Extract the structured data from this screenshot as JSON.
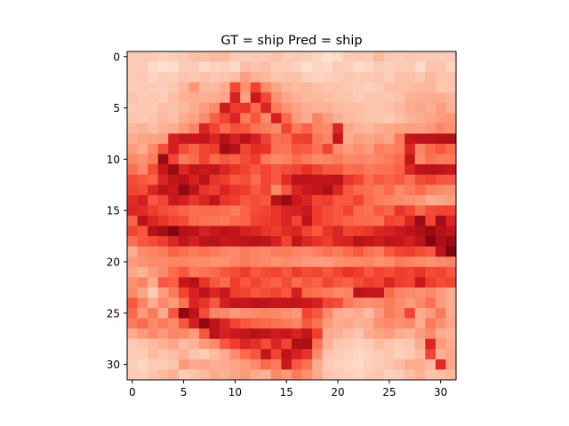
{
  "chart_data": {
    "type": "heatmap",
    "title": "GT = ship Pred = ship",
    "xlabel": "",
    "ylabel": "",
    "xlim": [
      -0.5,
      31.5
    ],
    "ylim": [
      31.5,
      -0.5
    ],
    "x_ticks": [
      0,
      5,
      10,
      15,
      20,
      25,
      30
    ],
    "y_ticks": [
      0,
      5,
      10,
      15,
      20,
      25,
      30
    ],
    "colormap": "Reds",
    "color_range": [
      0,
      1
    ],
    "grid_size": [
      32,
      32
    ],
    "values": [
      [
        0.2,
        0.2,
        0.2,
        0.17,
        0.19,
        0.2,
        0.24,
        0.23,
        0.26,
        0.26,
        0.2,
        0.2,
        0.2,
        0.2,
        0.23,
        0.19,
        0.2,
        0.19,
        0.16,
        0.12,
        0.15,
        0.2,
        0.21,
        0.2,
        0.26,
        0.21,
        0.19,
        0.21,
        0.2,
        0.2,
        0.2,
        0.2
      ],
      [
        0.2,
        0.2,
        0.15,
        0.13,
        0.14,
        0.2,
        0.2,
        0.15,
        0.17,
        0.18,
        0.15,
        0.24,
        0.22,
        0.24,
        0.2,
        0.2,
        0.17,
        0.13,
        0.16,
        0.15,
        0.2,
        0.18,
        0.14,
        0.16,
        0.2,
        0.18,
        0.2,
        0.2,
        0.14,
        0.22,
        0.22,
        0.17
      ],
      [
        0.2,
        0.21,
        0.17,
        0.2,
        0.19,
        0.22,
        0.21,
        0.23,
        0.21,
        0.22,
        0.24,
        0.34,
        0.28,
        0.26,
        0.22,
        0.23,
        0.23,
        0.18,
        0.17,
        0.18,
        0.2,
        0.22,
        0.2,
        0.21,
        0.22,
        0.18,
        0.23,
        0.23,
        0.21,
        0.26,
        0.22,
        0.22
      ],
      [
        0.19,
        0.2,
        0.2,
        0.19,
        0.21,
        0.26,
        0.36,
        0.26,
        0.25,
        0.3,
        0.59,
        0.38,
        0.61,
        0.4,
        0.32,
        0.27,
        0.25,
        0.26,
        0.24,
        0.22,
        0.22,
        0.21,
        0.2,
        0.18,
        0.2,
        0.24,
        0.24,
        0.24,
        0.26,
        0.26,
        0.21,
        0.22
      ],
      [
        0.22,
        0.2,
        0.21,
        0.19,
        0.24,
        0.28,
        0.3,
        0.29,
        0.3,
        0.32,
        0.72,
        0.33,
        0.75,
        0.59,
        0.38,
        0.32,
        0.28,
        0.26,
        0.26,
        0.24,
        0.23,
        0.22,
        0.2,
        0.22,
        0.22,
        0.21,
        0.23,
        0.28,
        0.29,
        0.3,
        0.3,
        0.27
      ],
      [
        0.2,
        0.21,
        0.2,
        0.24,
        0.23,
        0.26,
        0.3,
        0.35,
        0.4,
        0.74,
        0.63,
        0.65,
        0.5,
        0.7,
        0.45,
        0.37,
        0.33,
        0.29,
        0.27,
        0.28,
        0.25,
        0.24,
        0.24,
        0.22,
        0.22,
        0.23,
        0.26,
        0.3,
        0.31,
        0.29,
        0.34,
        0.28
      ],
      [
        0.22,
        0.21,
        0.22,
        0.26,
        0.23,
        0.3,
        0.33,
        0.4,
        0.53,
        0.6,
        0.7,
        0.45,
        0.55,
        0.4,
        0.72,
        0.5,
        0.35,
        0.3,
        0.42,
        0.34,
        0.29,
        0.26,
        0.24,
        0.22,
        0.22,
        0.2,
        0.24,
        0.27,
        0.3,
        0.32,
        0.35,
        0.36
      ],
      [
        0.26,
        0.28,
        0.24,
        0.28,
        0.3,
        0.35,
        0.42,
        0.7,
        0.6,
        0.5,
        0.57,
        0.55,
        0.47,
        0.44,
        0.4,
        0.6,
        0.45,
        0.52,
        0.42,
        0.4,
        0.7,
        0.31,
        0.28,
        0.26,
        0.29,
        0.31,
        0.33,
        0.34,
        0.33,
        0.36,
        0.41,
        0.38
      ],
      [
        0.3,
        0.32,
        0.33,
        0.34,
        0.72,
        0.77,
        0.76,
        0.78,
        0.7,
        0.82,
        0.72,
        0.8,
        0.72,
        0.6,
        0.48,
        0.5,
        0.61,
        0.62,
        0.46,
        0.42,
        0.78,
        0.3,
        0.34,
        0.32,
        0.34,
        0.32,
        0.45,
        0.76,
        0.8,
        0.8,
        0.82,
        0.84
      ],
      [
        0.35,
        0.3,
        0.4,
        0.58,
        0.72,
        0.58,
        0.52,
        0.6,
        0.62,
        0.88,
        0.82,
        0.6,
        0.67,
        0.65,
        0.48,
        0.47,
        0.55,
        0.54,
        0.48,
        0.6,
        0.4,
        0.35,
        0.38,
        0.35,
        0.44,
        0.42,
        0.45,
        0.7,
        0.42,
        0.5,
        0.55,
        0.5
      ],
      [
        0.4,
        0.38,
        0.45,
        0.9,
        0.6,
        0.45,
        0.5,
        0.6,
        0.5,
        0.55,
        0.52,
        0.58,
        0.62,
        0.45,
        0.4,
        0.43,
        0.5,
        0.45,
        0.4,
        0.42,
        0.45,
        0.4,
        0.42,
        0.4,
        0.42,
        0.45,
        0.5,
        0.78,
        0.4,
        0.48,
        0.45,
        0.45
      ],
      [
        0.48,
        0.4,
        0.58,
        0.76,
        0.9,
        0.7,
        0.78,
        0.75,
        0.78,
        0.7,
        0.65,
        0.6,
        0.55,
        0.6,
        0.55,
        0.58,
        0.6,
        0.66,
        0.6,
        0.55,
        0.55,
        0.48,
        0.5,
        0.45,
        0.47,
        0.48,
        0.52,
        0.7,
        0.8,
        0.82,
        0.8,
        0.76
      ],
      [
        0.58,
        0.55,
        0.52,
        0.7,
        0.78,
        0.82,
        0.72,
        0.8,
        0.65,
        0.62,
        0.55,
        0.58,
        0.5,
        0.6,
        0.55,
        0.68,
        0.8,
        0.8,
        0.78,
        0.78,
        0.8,
        0.65,
        0.6,
        0.5,
        0.55,
        0.52,
        0.55,
        0.48,
        0.58,
        0.6,
        0.56,
        0.55
      ],
      [
        0.6,
        0.58,
        0.7,
        0.8,
        0.75,
        0.92,
        0.8,
        0.65,
        0.62,
        0.7,
        0.65,
        0.62,
        0.55,
        0.6,
        0.4,
        0.55,
        0.7,
        0.75,
        0.78,
        0.85,
        0.7,
        0.55,
        0.5,
        0.48,
        0.45,
        0.5,
        0.4,
        0.45,
        0.5,
        0.42,
        0.4,
        0.38
      ],
      [
        0.68,
        0.72,
        0.55,
        0.6,
        0.75,
        0.72,
        0.65,
        0.7,
        0.78,
        0.65,
        0.62,
        0.55,
        0.58,
        0.55,
        0.82,
        0.9,
        0.75,
        0.7,
        0.6,
        0.62,
        0.55,
        0.55,
        0.6,
        0.5,
        0.45,
        0.42,
        0.4,
        0.38,
        0.36,
        0.3,
        0.32,
        0.34
      ],
      [
        0.7,
        0.68,
        0.62,
        0.58,
        0.55,
        0.52,
        0.48,
        0.5,
        0.5,
        0.48,
        0.45,
        0.52,
        0.58,
        0.6,
        0.65,
        0.7,
        0.72,
        0.75,
        0.62,
        0.58,
        0.55,
        0.6,
        0.5,
        0.48,
        0.55,
        0.52,
        0.65,
        0.6,
        0.5,
        0.58,
        0.6,
        0.6
      ],
      [
        0.52,
        0.8,
        0.7,
        0.65,
        0.6,
        0.58,
        0.5,
        0.48,
        0.47,
        0.45,
        0.5,
        0.52,
        0.6,
        0.62,
        0.65,
        0.7,
        0.6,
        0.8,
        0.62,
        0.58,
        0.55,
        0.52,
        0.5,
        0.5,
        0.48,
        0.6,
        0.58,
        0.7,
        0.9,
        0.6,
        0.88,
        0.7
      ],
      [
        0.6,
        0.55,
        0.82,
        0.88,
        0.95,
        0.82,
        0.8,
        0.72,
        0.75,
        0.8,
        0.78,
        0.72,
        0.7,
        0.65,
        0.62,
        0.68,
        0.7,
        0.6,
        0.55,
        0.65,
        0.7,
        0.6,
        0.62,
        0.65,
        0.7,
        0.72,
        0.75,
        0.8,
        0.85,
        0.9,
        0.82,
        0.78
      ],
      [
        0.48,
        0.55,
        0.58,
        0.62,
        0.7,
        0.78,
        0.72,
        0.8,
        0.82,
        0.76,
        0.78,
        0.8,
        0.82,
        0.8,
        0.72,
        0.6,
        0.78,
        0.7,
        0.66,
        0.62,
        0.7,
        0.72,
        0.82,
        0.78,
        0.74,
        0.8,
        0.78,
        0.72,
        0.8,
        0.95,
        0.85,
        0.9
      ],
      [
        0.3,
        0.4,
        0.42,
        0.45,
        0.52,
        0.48,
        0.45,
        0.48,
        0.45,
        0.42,
        0.4,
        0.45,
        0.42,
        0.4,
        0.44,
        0.45,
        0.42,
        0.4,
        0.44,
        0.48,
        0.45,
        0.5,
        0.55,
        0.48,
        0.45,
        0.55,
        0.6,
        0.62,
        0.58,
        0.55,
        0.8,
        0.96
      ],
      [
        0.35,
        0.38,
        0.4,
        0.4,
        0.42,
        0.42,
        0.4,
        0.4,
        0.38,
        0.38,
        0.42,
        0.45,
        0.42,
        0.4,
        0.38,
        0.4,
        0.38,
        0.36,
        0.34,
        0.35,
        0.38,
        0.4,
        0.4,
        0.42,
        0.38,
        0.4,
        0.45,
        0.42,
        0.4,
        0.38,
        0.4,
        0.42
      ],
      [
        0.32,
        0.28,
        0.35,
        0.4,
        0.5,
        0.55,
        0.45,
        0.48,
        0.5,
        0.55,
        0.58,
        0.62,
        0.55,
        0.58,
        0.6,
        0.55,
        0.62,
        0.58,
        0.6,
        0.55,
        0.6,
        0.65,
        0.62,
        0.55,
        0.6,
        0.58,
        0.62,
        0.6,
        0.65,
        0.58,
        0.6,
        0.55
      ],
      [
        0.38,
        0.42,
        0.3,
        0.55,
        0.52,
        0.76,
        0.82,
        0.65,
        0.55,
        0.5,
        0.62,
        0.55,
        0.6,
        0.55,
        0.52,
        0.58,
        0.5,
        0.55,
        0.52,
        0.6,
        0.55,
        0.52,
        0.58,
        0.62,
        0.6,
        0.7,
        0.62,
        0.6,
        0.75,
        0.62,
        0.58,
        0.6
      ],
      [
        0.4,
        0.32,
        0.2,
        0.35,
        0.45,
        0.6,
        0.72,
        0.8,
        0.7,
        0.75,
        0.62,
        0.6,
        0.55,
        0.58,
        0.6,
        0.55,
        0.72,
        0.5,
        0.48,
        0.45,
        0.4,
        0.42,
        0.8,
        0.78,
        0.76,
        0.5,
        0.42,
        0.4,
        0.38,
        0.4,
        0.35,
        0.3
      ],
      [
        0.55,
        0.42,
        0.3,
        0.4,
        0.35,
        0.48,
        0.7,
        0.65,
        0.55,
        0.72,
        0.78,
        0.76,
        0.8,
        0.8,
        0.76,
        0.78,
        0.78,
        0.75,
        0.72,
        0.6,
        0.58,
        0.45,
        0.4,
        0.38,
        0.4,
        0.45,
        0.4,
        0.35,
        0.4,
        0.48,
        0.35,
        0.3
      ],
      [
        0.5,
        0.35,
        0.45,
        0.3,
        0.55,
        0.92,
        0.8,
        0.58,
        0.42,
        0.4,
        0.35,
        0.38,
        0.4,
        0.42,
        0.4,
        0.38,
        0.36,
        0.6,
        0.55,
        0.4,
        0.3,
        0.28,
        0.3,
        0.25,
        0.35,
        0.45,
        0.4,
        0.6,
        0.3,
        0.35,
        0.45,
        0.3
      ],
      [
        0.45,
        0.5,
        0.4,
        0.45,
        0.4,
        0.55,
        0.72,
        0.92,
        0.8,
        0.7,
        0.6,
        0.55,
        0.52,
        0.5,
        0.48,
        0.45,
        0.42,
        0.55,
        0.48,
        0.35,
        0.3,
        0.32,
        0.28,
        0.3,
        0.38,
        0.4,
        0.38,
        0.4,
        0.3,
        0.45,
        0.38,
        0.32
      ],
      [
        0.3,
        0.35,
        0.4,
        0.35,
        0.42,
        0.4,
        0.35,
        0.55,
        0.8,
        0.72,
        0.75,
        0.78,
        0.82,
        0.78,
        0.74,
        0.76,
        0.72,
        0.78,
        0.62,
        0.3,
        0.28,
        0.25,
        0.22,
        0.3,
        0.32,
        0.35,
        0.3,
        0.28,
        0.35,
        0.4,
        0.3,
        0.28
      ],
      [
        0.2,
        0.22,
        0.25,
        0.28,
        0.32,
        0.25,
        0.28,
        0.35,
        0.4,
        0.55,
        0.62,
        0.7,
        0.66,
        0.58,
        0.7,
        0.6,
        0.85,
        0.86,
        0.48,
        0.28,
        0.22,
        0.2,
        0.18,
        0.2,
        0.25,
        0.22,
        0.2,
        0.22,
        0.3,
        0.7,
        0.35,
        0.3
      ],
      [
        0.2,
        0.2,
        0.25,
        0.22,
        0.25,
        0.28,
        0.22,
        0.2,
        0.25,
        0.3,
        0.4,
        0.5,
        0.55,
        0.78,
        0.6,
        0.8,
        0.72,
        0.65,
        0.4,
        0.22,
        0.2,
        0.18,
        0.16,
        0.18,
        0.2,
        0.22,
        0.18,
        0.2,
        0.25,
        0.6,
        0.28,
        0.32
      ],
      [
        0.18,
        0.16,
        0.2,
        0.2,
        0.22,
        0.35,
        0.3,
        0.32,
        0.28,
        0.3,
        0.32,
        0.35,
        0.4,
        0.5,
        0.45,
        0.75,
        0.55,
        0.48,
        0.3,
        0.2,
        0.18,
        0.16,
        0.15,
        0.18,
        0.2,
        0.22,
        0.25,
        0.3,
        0.3,
        0.25,
        0.68,
        0.32
      ],
      [
        0.2,
        0.18,
        0.22,
        0.25,
        0.28,
        0.2,
        0.22,
        0.25,
        0.3,
        0.28,
        0.32,
        0.35,
        0.3,
        0.28,
        0.4,
        0.35,
        0.45,
        0.38,
        0.3,
        0.22,
        0.2,
        0.18,
        0.16,
        0.2,
        0.22,
        0.18,
        0.2,
        0.24,
        0.28,
        0.22,
        0.24,
        0.26
      ]
    ]
  }
}
